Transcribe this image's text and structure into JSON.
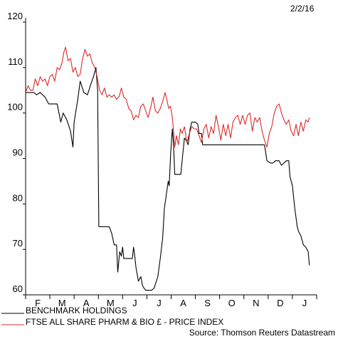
{
  "date_label": "2/2/16",
  "source": "Source: Thomson Reuters Datastream",
  "chart_data": {
    "type": "line",
    "title": "",
    "xlabel": "",
    "ylabel": "",
    "ylim": [
      60,
      120
    ],
    "yticks": [
      60,
      70,
      80,
      90,
      100,
      110,
      120
    ],
    "x_months": [
      "F",
      "M",
      "A",
      "M",
      "J",
      "J",
      "A",
      "S",
      "O",
      "N",
      "D",
      "J"
    ],
    "x_range": [
      0,
      12
    ],
    "grid": false,
    "legend_position": "bottom-left",
    "series": [
      {
        "name": "BENCHMARK HOLDINGS",
        "color": "#000000",
        "points": [
          [
            0.0,
            104.5
          ],
          [
            0.35,
            104.5
          ],
          [
            0.45,
            104.0
          ],
          [
            0.6,
            104.5
          ],
          [
            0.8,
            103.5
          ],
          [
            0.95,
            102.0
          ],
          [
            1.3,
            102.0
          ],
          [
            1.45,
            98.0
          ],
          [
            1.55,
            100.0
          ],
          [
            1.7,
            98.5
          ],
          [
            1.85,
            96.0
          ],
          [
            1.95,
            92.5
          ],
          [
            2.0,
            98.0
          ],
          [
            2.15,
            103.0
          ],
          [
            2.25,
            107.0
          ],
          [
            2.4,
            104.5
          ],
          [
            2.55,
            104.0
          ],
          [
            2.7,
            106.5
          ],
          [
            2.8,
            108.0
          ],
          [
            2.9,
            110.0
          ],
          [
            2.97,
            105.0
          ],
          [
            3.02,
            75.0
          ],
          [
            3.3,
            75.0
          ],
          [
            3.45,
            75.0
          ],
          [
            3.55,
            73.5
          ],
          [
            3.65,
            71.0
          ],
          [
            3.75,
            71.0
          ],
          [
            3.8,
            65.0
          ],
          [
            3.88,
            69.5
          ],
          [
            3.95,
            68.5
          ],
          [
            4.0,
            70.5
          ],
          [
            4.05,
            68.0
          ],
          [
            4.3,
            68.0
          ],
          [
            4.4,
            68.0
          ],
          [
            4.45,
            70.5
          ],
          [
            4.5,
            68.5
          ],
          [
            4.55,
            66.0
          ],
          [
            4.65,
            63.0
          ],
          [
            4.75,
            64.0
          ],
          [
            4.82,
            62.0
          ],
          [
            4.88,
            61.5
          ],
          [
            4.95,
            61.0
          ],
          [
            5.2,
            61.0
          ],
          [
            5.3,
            61.5
          ],
          [
            5.45,
            64.0
          ],
          [
            5.55,
            68.0
          ],
          [
            5.65,
            72.5
          ],
          [
            5.72,
            79.0
          ],
          [
            5.8,
            82.0
          ],
          [
            5.88,
            85.0
          ],
          [
            5.92,
            84.0
          ],
          [
            5.98,
            91.0
          ],
          [
            6.05,
            96.5
          ],
          [
            6.1,
            93.0
          ],
          [
            6.15,
            86.5
          ],
          [
            6.4,
            86.5
          ],
          [
            6.48,
            91.0
          ],
          [
            6.55,
            94.5
          ],
          [
            6.62,
            94.0
          ],
          [
            6.7,
            93.0
          ],
          [
            6.78,
            96.5
          ],
          [
            6.85,
            98.0
          ],
          [
            7.0,
            98.0
          ],
          [
            7.1,
            97.5
          ],
          [
            7.15,
            95.5
          ],
          [
            7.25,
            95.5
          ],
          [
            7.3,
            93.0
          ],
          [
            8.0,
            93.0
          ],
          [
            9.0,
            93.0
          ],
          [
            9.85,
            93.0
          ],
          [
            9.95,
            89.5
          ],
          [
            10.1,
            89.0
          ],
          [
            10.2,
            89.0
          ],
          [
            10.3,
            89.5
          ],
          [
            10.45,
            89.5
          ],
          [
            10.55,
            88.5
          ],
          [
            10.75,
            89.5
          ],
          [
            10.85,
            89.5
          ],
          [
            10.9,
            86.0
          ],
          [
            11.0,
            84.0
          ],
          [
            11.1,
            79.0
          ],
          [
            11.2,
            75.0
          ],
          [
            11.25,
            74.0
          ],
          [
            11.35,
            73.0
          ],
          [
            11.45,
            71.0
          ],
          [
            11.55,
            70.5
          ],
          [
            11.65,
            69.5
          ],
          [
            11.7,
            66.5
          ]
        ]
      },
      {
        "name": "FTSE ALL SHARE PHARM & BIO £ - PRICE INDEX",
        "color": "#d92b2b",
        "points": [
          [
            0.0,
            104.5
          ],
          [
            0.1,
            106.0
          ],
          [
            0.2,
            105.0
          ],
          [
            0.3,
            105.0
          ],
          [
            0.4,
            107.5
          ],
          [
            0.5,
            106.0
          ],
          [
            0.6,
            108.0
          ],
          [
            0.7,
            107.0
          ],
          [
            0.8,
            107.5
          ],
          [
            0.9,
            106.0
          ],
          [
            1.0,
            108.0
          ],
          [
            1.1,
            108.5
          ],
          [
            1.2,
            107.0
          ],
          [
            1.3,
            110.0
          ],
          [
            1.4,
            109.5
          ],
          [
            1.5,
            111.0
          ],
          [
            1.58,
            113.5
          ],
          [
            1.65,
            114.5
          ],
          [
            1.75,
            111.5
          ],
          [
            1.85,
            112.0
          ],
          [
            1.95,
            109.0
          ],
          [
            2.05,
            110.0
          ],
          [
            2.15,
            108.0
          ],
          [
            2.25,
            108.5
          ],
          [
            2.35,
            112.0
          ],
          [
            2.45,
            114.0
          ],
          [
            2.55,
            112.5
          ],
          [
            2.65,
            113.0
          ],
          [
            2.75,
            111.0
          ],
          [
            2.85,
            110.0
          ],
          [
            2.95,
            108.0
          ],
          [
            3.05,
            105.0
          ],
          [
            3.15,
            104.0
          ],
          [
            3.25,
            105.5
          ],
          [
            3.35,
            103.5
          ],
          [
            3.45,
            104.0
          ],
          [
            3.55,
            103.5
          ],
          [
            3.65,
            104.0
          ],
          [
            3.75,
            103.0
          ],
          [
            3.85,
            103.5
          ],
          [
            3.95,
            105.5
          ],
          [
            4.05,
            103.5
          ],
          [
            4.15,
            103.0
          ],
          [
            4.25,
            101.0
          ],
          [
            4.35,
            100.5
          ],
          [
            4.45,
            98.5
          ],
          [
            4.55,
            99.5
          ],
          [
            4.65,
            99.0
          ],
          [
            4.75,
            101.5
          ],
          [
            4.85,
            102.0
          ],
          [
            4.95,
            100.5
          ],
          [
            5.05,
            99.0
          ],
          [
            5.15,
            101.0
          ],
          [
            5.25,
            103.5
          ],
          [
            5.35,
            100.5
          ],
          [
            5.45,
            100.0
          ],
          [
            5.55,
            101.0
          ],
          [
            5.65,
            102.5
          ],
          [
            5.75,
            104.5
          ],
          [
            5.82,
            103.0
          ],
          [
            5.9,
            101.0
          ],
          [
            5.97,
            101.5
          ],
          [
            6.05,
            99.0
          ],
          [
            6.1,
            96.0
          ],
          [
            6.15,
            92.5
          ],
          [
            6.22,
            95.0
          ],
          [
            6.3,
            93.0
          ],
          [
            6.38,
            96.5
          ],
          [
            6.45,
            95.5
          ],
          [
            6.55,
            97.0
          ],
          [
            6.65,
            93.5
          ],
          [
            6.75,
            95.5
          ],
          [
            6.85,
            97.0
          ],
          [
            6.95,
            96.5
          ],
          [
            7.05,
            96.5
          ],
          [
            7.15,
            95.0
          ],
          [
            7.25,
            93.5
          ],
          [
            7.35,
            96.5
          ],
          [
            7.45,
            97.5
          ],
          [
            7.55,
            94.5
          ],
          [
            7.65,
            97.0
          ],
          [
            7.75,
            95.5
          ],
          [
            7.85,
            99.5
          ],
          [
            7.95,
            97.0
          ],
          [
            8.05,
            94.0
          ],
          [
            8.15,
            97.5
          ],
          [
            8.25,
            95.0
          ],
          [
            8.35,
            97.5
          ],
          [
            8.45,
            94.5
          ],
          [
            8.55,
            98.0
          ],
          [
            8.65,
            99.0
          ],
          [
            8.75,
            99.5
          ],
          [
            8.85,
            97.5
          ],
          [
            8.95,
            99.5
          ],
          [
            9.05,
            97.5
          ],
          [
            9.15,
            99.5
          ],
          [
            9.25,
            100.0
          ],
          [
            9.35,
            96.0
          ],
          [
            9.45,
            99.0
          ],
          [
            9.55,
            98.0
          ],
          [
            9.65,
            99.0
          ],
          [
            9.75,
            96.0
          ],
          [
            9.85,
            94.0
          ],
          [
            9.95,
            92.5
          ],
          [
            10.05,
            95.5
          ],
          [
            10.15,
            97.0
          ],
          [
            10.25,
            100.0
          ],
          [
            10.35,
            101.5
          ],
          [
            10.45,
            102.0
          ],
          [
            10.55,
            100.0
          ],
          [
            10.65,
            98.5
          ],
          [
            10.75,
            97.5
          ],
          [
            10.85,
            98.5
          ],
          [
            10.95,
            96.0
          ],
          [
            11.05,
            95.0
          ],
          [
            11.15,
            97.5
          ],
          [
            11.25,
            95.0
          ],
          [
            11.35,
            98.0
          ],
          [
            11.45,
            96.0
          ],
          [
            11.55,
            98.5
          ],
          [
            11.65,
            98.0
          ],
          [
            11.7,
            99.0
          ]
        ]
      }
    ]
  }
}
